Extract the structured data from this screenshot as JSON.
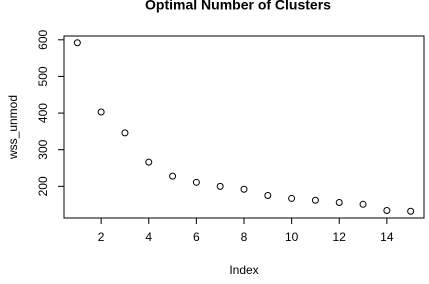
{
  "chart_data": {
    "type": "scatter",
    "title": "Optimal Number of Clusters",
    "x_label": "Index",
    "y_label": "wss_unmod",
    "x": [
      1,
      2,
      3,
      4,
      5,
      6,
      7,
      8,
      9,
      10,
      11,
      12,
      13,
      14,
      15
    ],
    "values": [
      592,
      403,
      346,
      266,
      228,
      211,
      200,
      192,
      175,
      167,
      162,
      156,
      151,
      134,
      132
    ],
    "color": "#000000",
    "xlim": [
      0.44,
      15.56
    ],
    "ylim": [
      113.6,
      610.4
    ],
    "xticks": [
      2,
      4,
      6,
      8,
      10,
      12,
      14
    ],
    "yticks": [
      200,
      300,
      400,
      500,
      600
    ]
  }
}
